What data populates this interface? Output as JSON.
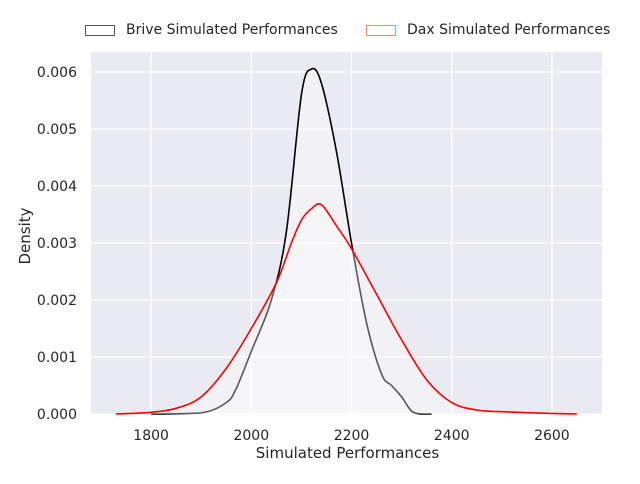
{
  "chart_data": {
    "type": "area",
    "xlabel": "Simulated Performances",
    "ylabel": "Density",
    "xlim": [
      1680,
      2700
    ],
    "ylim": [
      0,
      0.00635
    ],
    "x_ticks": [
      1800,
      2000,
      2200,
      2400,
      2600
    ],
    "x_tick_labels": [
      "1800",
      "2000",
      "2200",
      "2400",
      "2600"
    ],
    "y_ticks": [
      0.0,
      0.001,
      0.002,
      0.003,
      0.004,
      0.005,
      0.006
    ],
    "y_tick_labels": [
      "0.000",
      "0.001",
      "0.002",
      "0.003",
      "0.004",
      "0.005",
      "0.006"
    ],
    "grid": true,
    "legend_position": "top, above plot",
    "background_color": "#eaeaf2",
    "grid_color": "#ffffff",
    "series": [
      {
        "name": "Brive Simulated Performances",
        "color": "#000000",
        "legend_edge_color": "#555555",
        "fill": "rgba(255,255,255,0.35)",
        "x": [
          1800,
          1900,
          1950,
          1970,
          2000,
          2040,
          2070,
          2100,
          2120,
          2140,
          2170,
          2200,
          2230,
          2260,
          2280,
          2300,
          2320,
          2340,
          2360
        ],
        "y": [
          0,
          2e-05,
          0.0002,
          0.00045,
          0.0011,
          0.002,
          0.0032,
          0.0056,
          0.00605,
          0.0058,
          0.0046,
          0.003,
          0.0016,
          0.0007,
          0.0005,
          0.0003,
          5e-05,
          0,
          0
        ]
      },
      {
        "name": "Dax Simulated Performances",
        "color": "#ff0000",
        "legend_edge_color": "#ff7f7f",
        "fill": "rgba(255,255,255,0.35)",
        "x": [
          1730,
          1800,
          1850,
          1900,
          1950,
          2000,
          2050,
          2080,
          2100,
          2120,
          2140,
          2170,
          2200,
          2250,
          2300,
          2350,
          2400,
          2450,
          2500,
          2600,
          2650
        ],
        "y": [
          0,
          3e-05,
          0.0001,
          0.0003,
          0.0008,
          0.0015,
          0.0023,
          0.003,
          0.0034,
          0.0036,
          0.00367,
          0.0033,
          0.0029,
          0.0021,
          0.0013,
          0.0006,
          0.0002,
          7e-05,
          4e-05,
          1e-05,
          0
        ]
      }
    ]
  }
}
